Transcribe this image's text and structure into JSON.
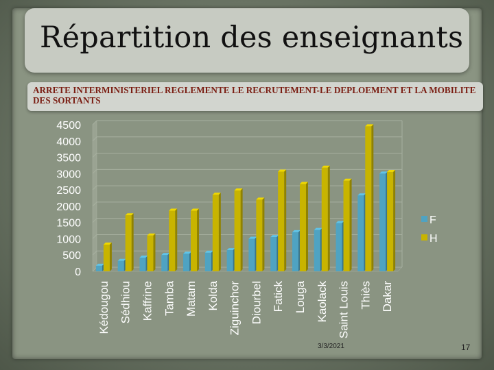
{
  "slide": {
    "title": "Répartition des enseignants",
    "subtitle": "ARRETE INTERMINISTERIEL  REGLEMENTE  LE RECRUTEMENT-LE DEPLOEMENT ET LA  MOBILITE  DES SORTANTS",
    "date": "3/3/2021",
    "page_number": "17"
  },
  "chart_data": {
    "type": "bar",
    "title": "",
    "xlabel": "",
    "ylabel": "",
    "ylim": [
      0,
      4500
    ],
    "yticks": [
      0,
      500,
      1000,
      1500,
      2000,
      2500,
      3000,
      3500,
      4000,
      4500
    ],
    "grid": true,
    "legend_position": "right",
    "categories": [
      "Kédougou",
      "Sédhiou",
      "Kaffrine",
      "Tamba",
      "Matam",
      "Kolda",
      "Ziguinchor",
      "Diourbel",
      "Fatick",
      "Louga",
      "Kaolack",
      "Saint Louis",
      "Thiès",
      "Dakar"
    ],
    "series": [
      {
        "name": "F",
        "color": "#4fa3c2",
        "values": [
          170,
          320,
          420,
          500,
          540,
          570,
          650,
          1000,
          1050,
          1200,
          1270,
          1480,
          2330,
          3000
        ]
      },
      {
        "name": "H",
        "color": "#c8b400",
        "values": [
          820,
          1720,
          1100,
          1860,
          1860,
          2350,
          2480,
          2200,
          3060,
          2680,
          3180,
          2780,
          4450,
          3050
        ]
      }
    ]
  }
}
